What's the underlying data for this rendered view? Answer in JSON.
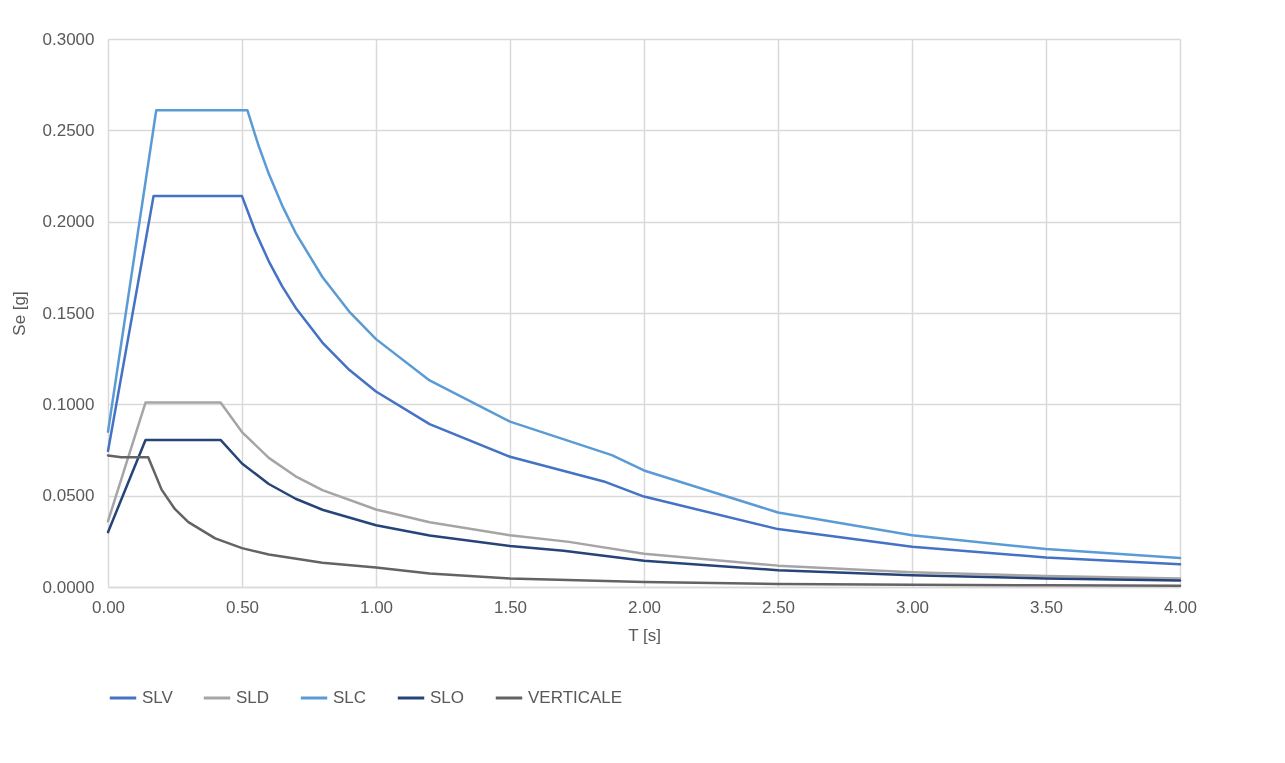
{
  "chart_data": {
    "type": "line",
    "xlabel": "T [s]",
    "ylabel": "Se [g]",
    "xlim": [
      0,
      4
    ],
    "ylim": [
      0,
      0.3
    ],
    "xticks": [
      {
        "value": 0,
        "label": "0.00"
      },
      {
        "value": 0.5,
        "label": "0.50"
      },
      {
        "value": 1,
        "label": "1.00"
      },
      {
        "value": 1.5,
        "label": "1.50"
      },
      {
        "value": 2,
        "label": "2.00"
      },
      {
        "value": 2.5,
        "label": "2.50"
      },
      {
        "value": 3,
        "label": "3.00"
      },
      {
        "value": 3.5,
        "label": "3.50"
      },
      {
        "value": 4,
        "label": "4.00"
      }
    ],
    "yticks": [
      {
        "value": 0,
        "label": "0.0000"
      },
      {
        "value": 0.05,
        "label": "0.0500"
      },
      {
        "value": 0.1,
        "label": "0.1000"
      },
      {
        "value": 0.15,
        "label": "0.1500"
      },
      {
        "value": 0.2,
        "label": "0.2000"
      },
      {
        "value": 0.25,
        "label": "0.2500"
      },
      {
        "value": 0.3,
        "label": "0.3000"
      }
    ],
    "grid": true,
    "legend": "bottom",
    "marker": "none",
    "line_style": "solid",
    "series": [
      {
        "name": "SLV",
        "color": "#4472c4",
        "x": [
          0,
          0.17,
          0.5,
          0.55,
          0.6,
          0.65,
          0.7,
          0.8,
          0.9,
          1.0,
          1.2,
          1.5,
          1.85,
          2.0,
          2.5,
          3.0,
          3.5,
          4.0
        ],
        "values": [
          0.0745,
          0.214,
          0.214,
          0.1945,
          0.1783,
          0.1646,
          0.1529,
          0.1338,
          0.1189,
          0.107,
          0.0892,
          0.0713,
          0.0578,
          0.0495,
          0.0317,
          0.022,
          0.0162,
          0.0124
        ]
      },
      {
        "name": "SLD",
        "color": "#a5a5a5",
        "x": [
          0,
          0.14,
          0.42,
          0.5,
          0.6,
          0.7,
          0.8,
          1.0,
          1.2,
          1.5,
          1.72,
          2.0,
          2.5,
          3.0,
          3.5,
          4.0
        ],
        "values": [
          0.036,
          0.101,
          0.101,
          0.0848,
          0.0707,
          0.0606,
          0.053,
          0.0424,
          0.0354,
          0.0283,
          0.0247,
          0.0182,
          0.0117,
          0.0081,
          0.006,
          0.0046
        ]
      },
      {
        "name": "SLC",
        "color": "#5b9bd5",
        "x": [
          0,
          0.18,
          0.52,
          0.56,
          0.6,
          0.65,
          0.7,
          0.8,
          0.9,
          1.0,
          1.2,
          1.5,
          1.88,
          2.0,
          2.5,
          3.0,
          3.5,
          4.0
        ],
        "values": [
          0.085,
          0.261,
          0.261,
          0.2424,
          0.2262,
          0.2088,
          0.1939,
          0.1697,
          0.1508,
          0.1357,
          0.1131,
          0.0905,
          0.0722,
          0.0638,
          0.0408,
          0.0283,
          0.0208,
          0.0159
        ]
      },
      {
        "name": "SLO",
        "color": "#264478",
        "x": [
          0,
          0.14,
          0.42,
          0.5,
          0.6,
          0.7,
          0.8,
          1.0,
          1.2,
          1.5,
          1.7,
          2.0,
          2.5,
          3.0,
          3.5,
          4.0
        ],
        "values": [
          0.03,
          0.0805,
          0.0805,
          0.0676,
          0.0564,
          0.0483,
          0.0423,
          0.0338,
          0.0282,
          0.0225,
          0.0199,
          0.0144,
          0.0092,
          0.0064,
          0.0047,
          0.0036
        ]
      },
      {
        "name": "VERTICALE",
        "color": "#636363",
        "x": [
          0,
          0.05,
          0.15,
          0.2,
          0.25,
          0.3,
          0.4,
          0.5,
          0.6,
          0.8,
          1.0,
          1.2,
          1.5,
          2.0,
          2.5,
          3.0,
          3.5,
          4.0
        ],
        "values": [
          0.072,
          0.071,
          0.071,
          0.0533,
          0.0426,
          0.0355,
          0.0266,
          0.0213,
          0.0178,
          0.0133,
          0.0107,
          0.0074,
          0.0047,
          0.0027,
          0.0017,
          0.0012,
          0.0009,
          0.0007
        ]
      }
    ]
  }
}
